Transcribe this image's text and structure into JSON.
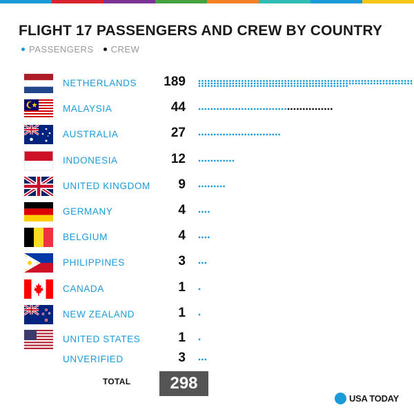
{
  "colors": {
    "passengers": "#1a9bd7",
    "crew": "#111111",
    "stripe": [
      "#1a9bd7",
      "#d9232e",
      "#7b3294",
      "#44a340",
      "#f58025",
      "#2ebcb3",
      "#1a9bd7",
      "#f5c518"
    ]
  },
  "legend": {
    "passengers_label": "PASSENGERS",
    "crew_label": "CREW"
  },
  "total": {
    "label": "TOTAL",
    "value": "298"
  },
  "brand": {
    "name": "USA TODAY"
  },
  "chart_data": {
    "type": "bar",
    "title": "FLIGHT 17 PASSENGERS AND CREW BY COUNTRY",
    "legend_position": "top-left",
    "series": [
      {
        "name": "PASSENGERS",
        "values": [
          189,
          29,
          27,
          12,
          9,
          4,
          4,
          3,
          1,
          1,
          1,
          3
        ]
      },
      {
        "name": "CREW",
        "values": [
          0,
          15,
          0,
          0,
          0,
          0,
          0,
          0,
          0,
          0,
          0,
          0
        ]
      }
    ],
    "rows": [
      {
        "country": "NETHERLANDS",
        "total": "189",
        "flag": "netherlands-flag"
      },
      {
        "country": "MALAYSIA",
        "total": "44",
        "flag": "malaysia-flag"
      },
      {
        "country": "AUSTRALIA",
        "total": "27",
        "flag": "australia-flag"
      },
      {
        "country": "INDONESIA",
        "total": "12",
        "flag": "indonesia-flag"
      },
      {
        "country": "UNITED KINGDOM",
        "total": "9",
        "flag": "united-kingdom-flag"
      },
      {
        "country": "GERMANY",
        "total": "4",
        "flag": "germany-flag"
      },
      {
        "country": "BELGIUM",
        "total": "4",
        "flag": "belgium-flag"
      },
      {
        "country": "PHILIPPINES",
        "total": "3",
        "flag": "philippines-flag"
      },
      {
        "country": "CANADA",
        "total": "1",
        "flag": "canada-flag"
      },
      {
        "country": "NEW ZEALAND",
        "total": "1",
        "flag": "new-zealand-flag"
      },
      {
        "country": "UNITED STATES",
        "total": "1",
        "flag": "united-states-flag"
      },
      {
        "country": "UNVERIFIED",
        "total": "3",
        "flag": ""
      }
    ]
  }
}
